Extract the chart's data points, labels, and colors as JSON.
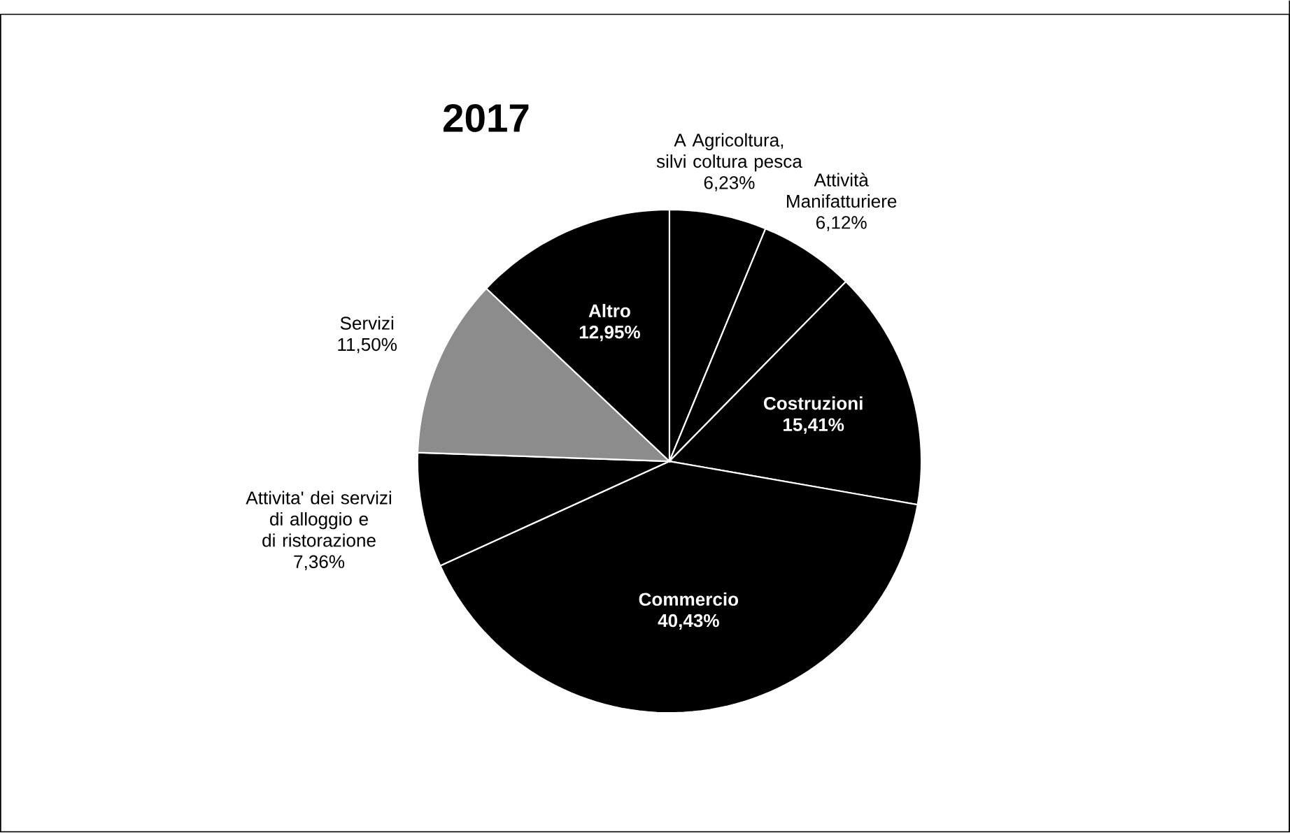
{
  "chart_data": {
    "type": "pie",
    "title": "2017",
    "categories": [
      "A Agricoltura, silvi coltura pesca",
      "Attività Manifatturiere",
      "Costruzioni",
      "Commercio",
      "Attivita' dei servizi di alloggio e di ristorazione",
      "Servizi",
      "Altro"
    ],
    "values": [
      6.23,
      6.12,
      15.41,
      40.43,
      7.36,
      11.5,
      12.95
    ],
    "value_labels": [
      "6,23%",
      "6,12%",
      "15,41%",
      "40,43%",
      "7,36%",
      "11,50%",
      "12,95%"
    ],
    "colors": [
      "#000000",
      "#000000",
      "#000000",
      "#000000",
      "#000000",
      "#8c8c8c",
      "#000000"
    ]
  }
}
